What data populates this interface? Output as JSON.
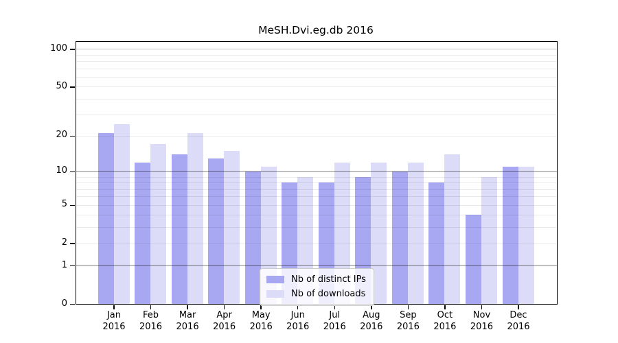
{
  "chart_data": {
    "type": "bar",
    "title": "MeSH.Dvi.eg.db 2016",
    "categories": [
      "Jan",
      "Feb",
      "Mar",
      "Apr",
      "May",
      "Jun",
      "Jul",
      "Aug",
      "Sep",
      "Oct",
      "Nov",
      "Dec"
    ],
    "x_tick_subline": "2016",
    "series": [
      {
        "name": "Nb of distinct IPs",
        "color": "#a8a8f2",
        "values": [
          21,
          12,
          14,
          13,
          10,
          8,
          8,
          9,
          10,
          8,
          4,
          11
        ]
      },
      {
        "name": "Nb of downloads",
        "color": "#dcdcf8",
        "values": [
          25,
          17,
          21,
          15,
          11,
          9,
          12,
          12,
          12,
          14,
          9,
          11
        ]
      }
    ],
    "y_scale": "log1p",
    "ylim": [
      0,
      114
    ],
    "y_ticks": [
      100,
      50,
      20,
      10,
      5,
      2,
      1,
      0
    ],
    "y_gridlines_major": [
      1,
      10,
      100
    ],
    "y_gridlines_minor": [
      2,
      3,
      4,
      5,
      6,
      7,
      8,
      9,
      20,
      30,
      40,
      50,
      60,
      70,
      80,
      90
    ],
    "grid": true,
    "legend_position": "bottom-center",
    "colors": {
      "axis_line": "#000000",
      "grid_major": "rgba(0,0,0,0.25)",
      "grid_minor": "rgba(0,0,0,0.085)",
      "tick_text": "#000000"
    }
  }
}
